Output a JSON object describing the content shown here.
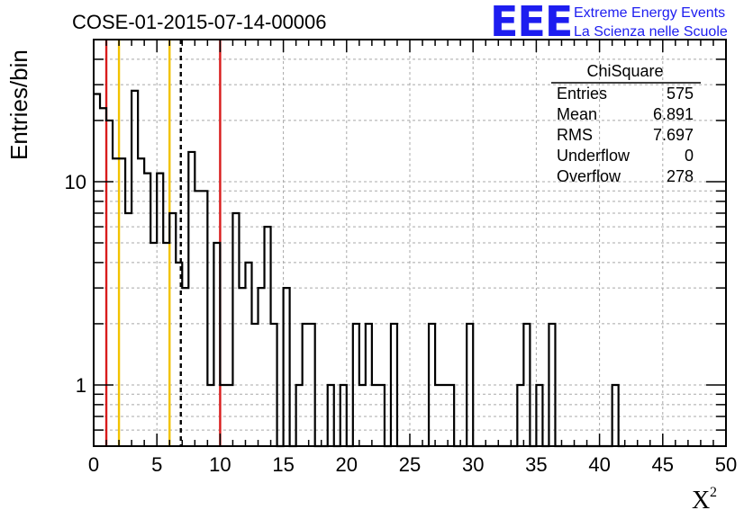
{
  "chart_data": {
    "type": "step",
    "title": "COSE-01-2015-07-14-00006",
    "ylabel": "Entries/bin",
    "xlabel_main": "X",
    "xlabel_sup": "2",
    "logo": {
      "mark": "EEE",
      "line1": "Extreme Energy Events",
      "line2": "La Scienza nelle Scuole"
    },
    "xlim": [
      0,
      50
    ],
    "ylim": [
      0.5,
      50
    ],
    "yscale": "log",
    "grid": true,
    "bin_width": 0.5,
    "x_ticks": [
      "0",
      "5",
      "10",
      "15",
      "20",
      "25",
      "30",
      "35",
      "40",
      "45",
      "50"
    ],
    "y_ticks": [
      {
        "value": 1,
        "label": "1"
      },
      {
        "value": 10,
        "label": "10"
      }
    ],
    "bins": [
      {
        "x": 0.0,
        "y": 27
      },
      {
        "x": 0.5,
        "y": 23
      },
      {
        "x": 1.0,
        "y": 20
      },
      {
        "x": 1.5,
        "y": 13
      },
      {
        "x": 2.0,
        "y": 13
      },
      {
        "x": 2.5,
        "y": 7
      },
      {
        "x": 3.0,
        "y": 28
      },
      {
        "x": 3.5,
        "y": 13
      },
      {
        "x": 4.0,
        "y": 11
      },
      {
        "x": 4.5,
        "y": 5
      },
      {
        "x": 5.0,
        "y": 11
      },
      {
        "x": 5.5,
        "y": 5
      },
      {
        "x": 6.0,
        "y": 7
      },
      {
        "x": 6.5,
        "y": 4
      },
      {
        "x": 7.0,
        "y": 3
      },
      {
        "x": 7.5,
        "y": 14
      },
      {
        "x": 8.0,
        "y": 9
      },
      {
        "x": 8.5,
        "y": 9
      },
      {
        "x": 9.0,
        "y": 1
      },
      {
        "x": 9.5,
        "y": 5
      },
      {
        "x": 10.0,
        "y": 1
      },
      {
        "x": 10.5,
        "y": 1
      },
      {
        "x": 11.0,
        "y": 7
      },
      {
        "x": 11.5,
        "y": 3
      },
      {
        "x": 12.0,
        "y": 4
      },
      {
        "x": 12.5,
        "y": 2
      },
      {
        "x": 13.0,
        "y": 3
      },
      {
        "x": 13.5,
        "y": 6
      },
      {
        "x": 14.0,
        "y": 2
      },
      {
        "x": 14.5,
        "y": 0
      },
      {
        "x": 15.0,
        "y": 3
      },
      {
        "x": 15.5,
        "y": 0
      },
      {
        "x": 16.0,
        "y": 1
      },
      {
        "x": 16.5,
        "y": 2
      },
      {
        "x": 17.0,
        "y": 2
      },
      {
        "x": 17.5,
        "y": 0
      },
      {
        "x": 18.0,
        "y": 0
      },
      {
        "x": 18.5,
        "y": 1
      },
      {
        "x": 19.0,
        "y": 0
      },
      {
        "x": 19.5,
        "y": 1
      },
      {
        "x": 20.0,
        "y": 0
      },
      {
        "x": 20.5,
        "y": 2
      },
      {
        "x": 21.0,
        "y": 1
      },
      {
        "x": 21.5,
        "y": 2
      },
      {
        "x": 22.0,
        "y": 1
      },
      {
        "x": 22.5,
        "y": 1
      },
      {
        "x": 23.0,
        "y": 0
      },
      {
        "x": 23.5,
        "y": 2
      },
      {
        "x": 24.0,
        "y": 0
      },
      {
        "x": 24.5,
        "y": 0
      },
      {
        "x": 25.0,
        "y": 0
      },
      {
        "x": 25.5,
        "y": 0
      },
      {
        "x": 26.0,
        "y": 0
      },
      {
        "x": 26.5,
        "y": 2
      },
      {
        "x": 27.0,
        "y": 1
      },
      {
        "x": 27.5,
        "y": 1
      },
      {
        "x": 28.0,
        "y": 1
      },
      {
        "x": 28.5,
        "y": 0
      },
      {
        "x": 29.0,
        "y": 0
      },
      {
        "x": 29.5,
        "y": 2
      },
      {
        "x": 30.0,
        "y": 0
      },
      {
        "x": 30.5,
        "y": 0
      },
      {
        "x": 31.0,
        "y": 0
      },
      {
        "x": 31.5,
        "y": 0
      },
      {
        "x": 32.0,
        "y": 0
      },
      {
        "x": 32.5,
        "y": 0
      },
      {
        "x": 33.0,
        "y": 0
      },
      {
        "x": 33.5,
        "y": 1
      },
      {
        "x": 34.0,
        "y": 2
      },
      {
        "x": 34.5,
        "y": 0
      },
      {
        "x": 35.0,
        "y": 1
      },
      {
        "x": 35.5,
        "y": 0
      },
      {
        "x": 36.0,
        "y": 2
      },
      {
        "x": 36.5,
        "y": 0
      },
      {
        "x": 37.0,
        "y": 0
      },
      {
        "x": 37.5,
        "y": 0
      },
      {
        "x": 38.0,
        "y": 0
      },
      {
        "x": 38.5,
        "y": 0
      },
      {
        "x": 39.0,
        "y": 0
      },
      {
        "x": 39.5,
        "y": 0
      },
      {
        "x": 40.0,
        "y": 0
      },
      {
        "x": 40.5,
        "y": 0
      },
      {
        "x": 41.0,
        "y": 1
      },
      {
        "x": 41.5,
        "y": 0
      }
    ],
    "reference_lines": [
      {
        "x": 1.0,
        "color": "#d81b1b",
        "style": "solid"
      },
      {
        "x": 2.0,
        "color": "#f2c200",
        "style": "solid"
      },
      {
        "x": 6.0,
        "color": "#f2c200",
        "style": "solid"
      },
      {
        "x": 6.89,
        "color": "#000000",
        "style": "dashed"
      },
      {
        "x": 10.0,
        "color": "#d81b1b",
        "style": "solid"
      }
    ],
    "stats_box": {
      "header": "ChiSquare",
      "rows": [
        {
          "label": "Entries",
          "value": "575"
        },
        {
          "label": "Mean",
          "value": "6.891"
        },
        {
          "label": "RMS",
          "value": "7.697"
        },
        {
          "label": "Underflow",
          "value": "0"
        },
        {
          "label": "Overflow",
          "value": "278"
        }
      ]
    }
  }
}
